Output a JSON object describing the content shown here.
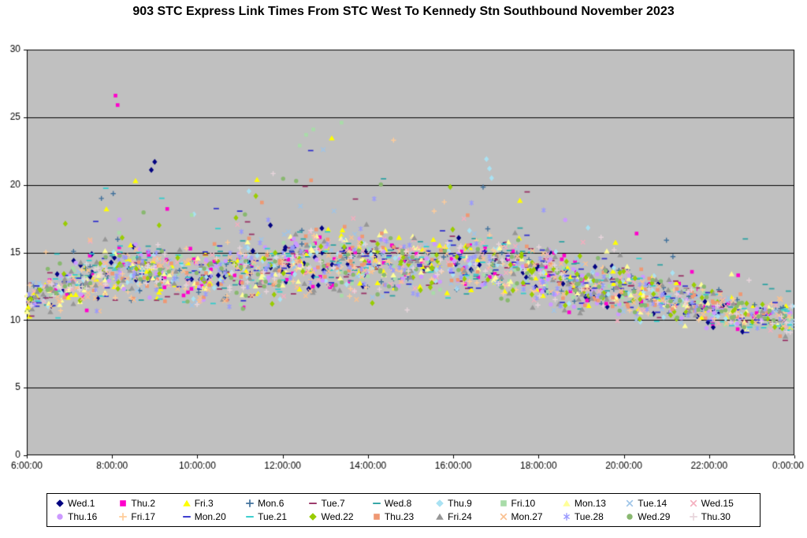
{
  "chart_data": {
    "type": "scatter",
    "title": "903 STC Express Link Times From STC West To Kennedy Stn Southbound November 2023",
    "x_axis": {
      "tick_labels": [
        "6:00:00",
        "8:00:00",
        "10:00:00",
        "12:00:00",
        "14:00:00",
        "16:00:00",
        "18:00:00",
        "20:00:00",
        "22:00:00",
        "0:00:00"
      ],
      "tick_hours": [
        6,
        8,
        10,
        12,
        14,
        16,
        18,
        20,
        22,
        24
      ],
      "range_hours": [
        6,
        24
      ]
    },
    "y_axis": {
      "tick_labels": [
        "0",
        "5",
        "10",
        "15",
        "20",
        "25",
        "30"
      ],
      "tick_values": [
        0,
        5,
        10,
        15,
        20,
        25,
        30
      ],
      "range": [
        0,
        30
      ]
    },
    "plot_background": "#C0C0C0",
    "gridline_color": "#000000",
    "series": [
      {
        "name": "Wed.1",
        "marker": "diamond",
        "color": "#000080",
        "seed": 11
      },
      {
        "name": "Thu.2",
        "marker": "square",
        "color": "#FF00CC",
        "seed": 22
      },
      {
        "name": "Fri.3",
        "marker": "triangle",
        "color": "#FFFF00",
        "seed": 33
      },
      {
        "name": "Mon.6",
        "marker": "plus",
        "color": "#41719C",
        "seed": 44
      },
      {
        "name": "Tue.7",
        "marker": "dash",
        "color": "#993366",
        "seed": 55
      },
      {
        "name": "Wed.8",
        "marker": "dash",
        "color": "#2FA3A3",
        "seed": 66
      },
      {
        "name": "Thu.9",
        "marker": "diamond",
        "color": "#A9E2F3",
        "seed": 77
      },
      {
        "name": "Fri.10",
        "marker": "square",
        "color": "#A8DCA8",
        "seed": 88
      },
      {
        "name": "Mon.13",
        "marker": "triangle",
        "color": "#FFFF99",
        "seed": 99
      },
      {
        "name": "Tue.14",
        "marker": "x",
        "color": "#9FC5E8",
        "seed": 110
      },
      {
        "name": "Wed.15",
        "marker": "x",
        "color": "#F4AEBE",
        "seed": 121
      },
      {
        "name": "Thu.16",
        "marker": "circle",
        "color": "#CC99FF",
        "seed": 132
      },
      {
        "name": "Fri.17",
        "marker": "plus",
        "color": "#FFCC99",
        "seed": 143
      },
      {
        "name": "Mon.20",
        "marker": "dash",
        "color": "#3333CC",
        "seed": 154
      },
      {
        "name": "Tue.21",
        "marker": "dash",
        "color": "#33CCCC",
        "seed": 165
      },
      {
        "name": "Wed.22",
        "marker": "diamond",
        "color": "#99CC00",
        "seed": 176
      },
      {
        "name": "Thu.23",
        "marker": "square",
        "color": "#EF9873",
        "seed": 187
      },
      {
        "name": "Fri.24",
        "marker": "triangle",
        "color": "#969696",
        "seed": 198
      },
      {
        "name": "Mon.27",
        "marker": "x",
        "color": "#FAC08F",
        "seed": 209
      },
      {
        "name": "Tue.28",
        "marker": "asterisk",
        "color": "#9999FF",
        "seed": 220
      },
      {
        "name": "Wed.29",
        "marker": "circle",
        "color": "#89B870",
        "seed": 231
      },
      {
        "name": "Thu.30",
        "marker": "plus",
        "color": "#E8D5DC",
        "seed": 242
      }
    ],
    "distribution": {
      "estimated_from_plot": true,
      "hours": [
        6,
        7,
        8,
        9,
        10,
        11,
        12,
        13,
        14,
        15,
        16,
        17,
        18,
        19,
        20,
        21,
        22,
        23,
        24
      ],
      "mean": [
        11.3,
        12.8,
        13.6,
        13.6,
        13.3,
        13.6,
        14.0,
        14.4,
        14.2,
        13.9,
        14.1,
        14.2,
        13.4,
        12.7,
        12.1,
        11.7,
        11.0,
        10.4,
        10.0
      ],
      "spread": [
        1.2,
        1.6,
        1.9,
        1.8,
        1.8,
        1.9,
        2.0,
        2.1,
        2.0,
        1.9,
        2.0,
        2.0,
        1.9,
        1.7,
        1.5,
        1.4,
        1.2,
        1.1,
        1.0
      ],
      "max": [
        15.5,
        19.0,
        22.0,
        21.0,
        19.5,
        20.0,
        23.5,
        24.8,
        23.5,
        19.5,
        21.0,
        22.0,
        20.0,
        17.5,
        16.5,
        16.0,
        14.5,
        13.5,
        12.5
      ],
      "min": [
        8.7,
        8.9,
        9.3,
        9.5,
        9.6,
        9.7,
        9.8,
        9.8,
        9.8,
        9.7,
        9.7,
        9.6,
        9.5,
        9.3,
        9.0,
        8.8,
        8.4,
        8.1,
        7.8
      ],
      "points_per_series": 118
    },
    "notable_points": [
      {
        "series": "Thu.2",
        "hour": 8.08,
        "minutes": 26.6
      },
      {
        "series": "Thu.2",
        "hour": 8.13,
        "minutes": 25.9
      },
      {
        "series": "Wed.1",
        "hour": 9.0,
        "minutes": 21.7
      },
      {
        "series": "Wed.1",
        "hour": 8.92,
        "minutes": 21.1
      },
      {
        "series": "Fri.3",
        "hour": 8.55,
        "minutes": 20.3
      },
      {
        "series": "Mon.6",
        "hour": 7.75,
        "minutes": 19.0
      },
      {
        "series": "Fri.10",
        "hour": 12.4,
        "minutes": 22.9
      },
      {
        "series": "Fri.10",
        "hour": 12.55,
        "minutes": 23.7
      },
      {
        "series": "Fri.10",
        "hour": 12.72,
        "minutes": 24.1
      },
      {
        "series": "Fri.10",
        "hour": 13.38,
        "minutes": 24.6
      },
      {
        "series": "Tue.14",
        "hour": 12.95,
        "minutes": 22.6
      },
      {
        "series": "Fri.17",
        "hour": 14.6,
        "minutes": 23.3
      },
      {
        "series": "Thu.9",
        "hour": 16.78,
        "minutes": 21.9
      },
      {
        "series": "Thu.9",
        "hour": 16.85,
        "minutes": 21.2
      },
      {
        "series": "Thu.9",
        "hour": 16.9,
        "minutes": 20.5
      },
      {
        "series": "Mon.6",
        "hour": 21.0,
        "minutes": 15.9
      },
      {
        "series": "Wed.8",
        "hour": 22.85,
        "minutes": 16.0
      },
      {
        "series": "Thu.2",
        "hour": 20.3,
        "minutes": 16.4
      }
    ]
  }
}
